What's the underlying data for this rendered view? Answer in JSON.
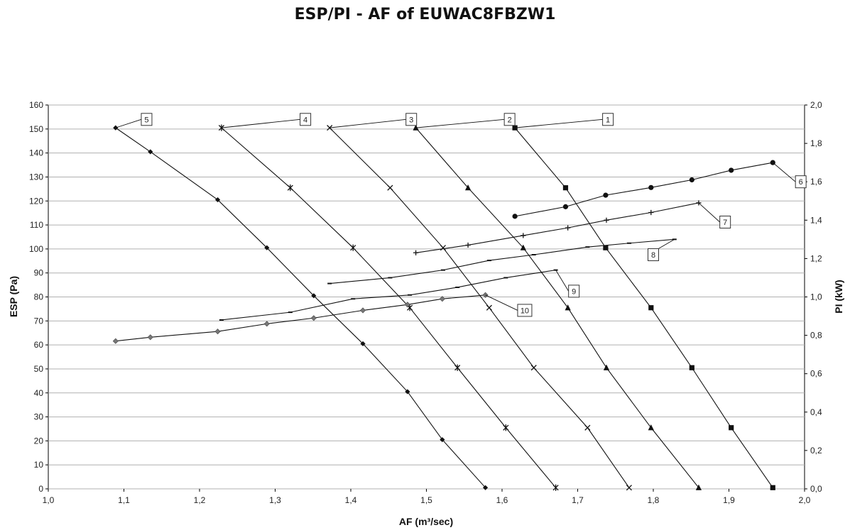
{
  "title": "ESP/PI - AF of EUWAC8FBZW1",
  "chart_data": {
    "type": "line",
    "title": "ESP/PI - AF of EUWAC8FBZW1",
    "xlabel": "AF (m³/sec)",
    "ylabel": "ESP (Pa)",
    "y2label": "PI (kW)",
    "xlim": [
      1.0,
      2.0
    ],
    "ylim": [
      0,
      160
    ],
    "y2lim": [
      0.0,
      2.0
    ],
    "x_ticks": [
      "1,0",
      "1,1",
      "1,2",
      "1,3",
      "1,4",
      "1,5",
      "1,6",
      "1,7",
      "1,8",
      "1,9",
      "2,0"
    ],
    "y_ticks": [
      "0",
      "10",
      "20",
      "30",
      "40",
      "50",
      "60",
      "70",
      "80",
      "90",
      "100",
      "110",
      "120",
      "130",
      "140",
      "150",
      "160"
    ],
    "y2_ticks": [
      "0,0",
      "0,2",
      "0,4",
      "0,6",
      "0,8",
      "1,0",
      "1,2",
      "1,4",
      "1,6",
      "1,8",
      "2,0"
    ],
    "grid": true,
    "series": [
      {
        "name": "1",
        "axis": "left",
        "marker": "square",
        "x": [
          1.617,
          1.684,
          1.737,
          1.797,
          1.851,
          1.903,
          1.958
        ],
        "y": [
          150.5,
          125.5,
          100.5,
          75.5,
          50.5,
          25.5,
          0.5
        ],
        "label_at": [
          1.74,
          154
        ]
      },
      {
        "name": "2",
        "axis": "left",
        "marker": "triangle",
        "x": [
          1.486,
          1.555,
          1.628,
          1.687,
          1.738,
          1.797,
          1.86
        ],
        "y": [
          150.5,
          125.5,
          100.5,
          75.5,
          50.5,
          25.5,
          0.5
        ],
        "label_at": [
          1.61,
          154
        ]
      },
      {
        "name": "3",
        "axis": "left",
        "marker": "x",
        "x": [
          1.372,
          1.452,
          1.522,
          1.583,
          1.642,
          1.713,
          1.768
        ],
        "y": [
          150.5,
          125.5,
          100.5,
          75.5,
          50.5,
          25.5,
          0.5
        ],
        "label_at": [
          1.48,
          154
        ]
      },
      {
        "name": "4",
        "axis": "left",
        "marker": "star",
        "x": [
          1.229,
          1.32,
          1.403,
          1.478,
          1.541,
          1.605,
          1.671
        ],
        "y": [
          150.5,
          125.5,
          100.5,
          75.5,
          50.5,
          25.5,
          0.5
        ],
        "label_at": [
          1.34,
          154
        ]
      },
      {
        "name": "5",
        "axis": "left",
        "marker": "diamond",
        "x": [
          1.089,
          1.135,
          1.224,
          1.289,
          1.351,
          1.416,
          1.475,
          1.521,
          1.578
        ],
        "y": [
          150.5,
          140.5,
          120.5,
          100.5,
          80.5,
          60.5,
          40.5,
          20.5,
          0.5
        ],
        "label_at": [
          1.13,
          154
        ]
      },
      {
        "name": "6",
        "axis": "right",
        "marker": "circle",
        "x": [
          1.617,
          1.684,
          1.737,
          1.797,
          1.851,
          1.903,
          1.958
        ],
        "y": [
          1.42,
          1.47,
          1.53,
          1.57,
          1.61,
          1.66,
          1.7
        ],
        "label_at": [
          1.995,
          1.6
        ]
      },
      {
        "name": "7",
        "axis": "right",
        "marker": "plus",
        "x": [
          1.486,
          1.555,
          1.628,
          1.687,
          1.738,
          1.797,
          1.86
        ],
        "y": [
          1.23,
          1.27,
          1.32,
          1.36,
          1.4,
          1.44,
          1.49
        ],
        "label_at": [
          1.895,
          1.39
        ]
      },
      {
        "name": "8",
        "axis": "right",
        "marker": "dash",
        "x": [
          1.372,
          1.452,
          1.522,
          1.583,
          1.642,
          1.713,
          1.768,
          1.828
        ],
        "y": [
          1.07,
          1.1,
          1.14,
          1.19,
          1.22,
          1.26,
          1.28,
          1.3
        ],
        "label_at": [
          1.8,
          1.22
        ]
      },
      {
        "name": "9",
        "axis": "right",
        "marker": "dash",
        "x": [
          1.229,
          1.32,
          1.403,
          1.478,
          1.541,
          1.605,
          1.671
        ],
        "y": [
          0.88,
          0.92,
          0.99,
          1.01,
          1.05,
          1.1,
          1.14
        ],
        "label_at": [
          1.695,
          1.03
        ]
      },
      {
        "name": "10",
        "axis": "right",
        "marker": "diamond-grey",
        "x": [
          1.089,
          1.135,
          1.224,
          1.289,
          1.351,
          1.416,
          1.475,
          1.521,
          1.578
        ],
        "y": [
          0.77,
          0.79,
          0.82,
          0.86,
          0.89,
          0.93,
          0.96,
          0.99,
          1.01
        ],
        "label_at": [
          1.63,
          0.93
        ]
      }
    ]
  }
}
